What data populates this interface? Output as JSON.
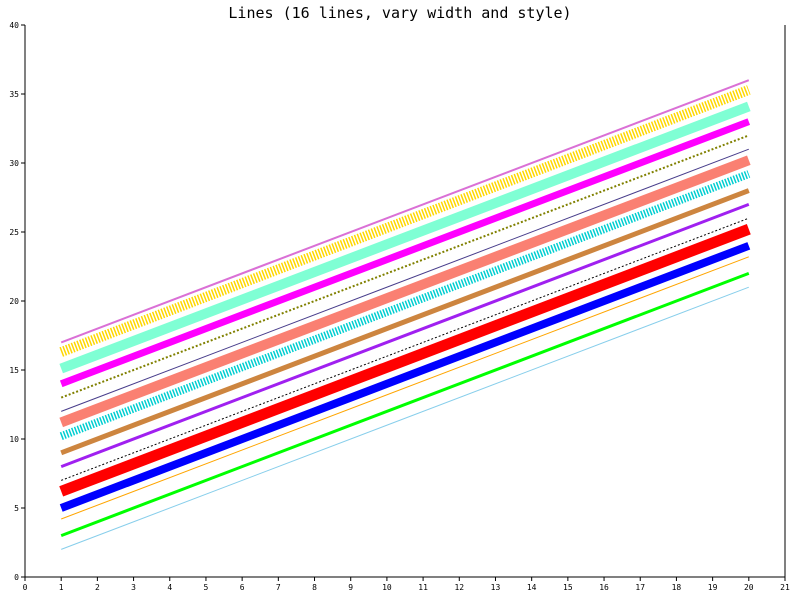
{
  "chart_data": {
    "type": "line",
    "title": "Lines (16 lines, vary width and style)",
    "xlabel": "",
    "ylabel": "",
    "xlim": [
      0,
      21
    ],
    "ylim": [
      0,
      40
    ],
    "x_ticks": [
      0,
      1,
      2,
      3,
      4,
      5,
      6,
      7,
      8,
      9,
      10,
      11,
      12,
      13,
      14,
      15,
      16,
      17,
      18,
      19,
      20,
      21
    ],
    "y_ticks": [
      0,
      5,
      10,
      15,
      20,
      25,
      30,
      35,
      40
    ],
    "grid": false,
    "legend": "none",
    "series": [
      {
        "color": "#87ceeb",
        "width": 1,
        "style": "solid",
        "x": [
          1,
          20
        ],
        "y": [
          2,
          21
        ]
      },
      {
        "color": "#00ff00",
        "width": 3,
        "style": "solid",
        "x": [
          1,
          20
        ],
        "y": [
          3,
          22
        ]
      },
      {
        "color": "#ffa500",
        "width": 1,
        "style": "solid",
        "x": [
          1,
          20
        ],
        "y": [
          4.2,
          23.2
        ]
      },
      {
        "color": "#0000ff",
        "width": 8,
        "style": "solid",
        "x": [
          1,
          20
        ],
        "y": [
          5,
          24
        ]
      },
      {
        "color": "#ff0000",
        "width": 11,
        "style": "solid",
        "x": [
          1,
          20
        ],
        "y": [
          6.2,
          25.2
        ]
      },
      {
        "color": "#000000",
        "width": 1,
        "style": "dotted",
        "x": [
          1,
          20
        ],
        "y": [
          7,
          26
        ]
      },
      {
        "color": "#a020f0",
        "width": 3,
        "style": "solid",
        "x": [
          1,
          20
        ],
        "y": [
          8,
          27
        ]
      },
      {
        "color": "#cd853f",
        "width": 5,
        "style": "solid",
        "x": [
          1,
          20
        ],
        "y": [
          9,
          28
        ]
      },
      {
        "color": "#00ced1",
        "width": 8,
        "style": "dotted",
        "x": [
          1,
          20
        ],
        "y": [
          10.2,
          29.2
        ]
      },
      {
        "color": "#fa8072",
        "width": 10,
        "style": "solid",
        "x": [
          1,
          20
        ],
        "y": [
          11.2,
          30.2
        ]
      },
      {
        "color": "#483d8b",
        "width": 1,
        "style": "solid",
        "x": [
          1,
          20
        ],
        "y": [
          12,
          31
        ]
      },
      {
        "color": "#808000",
        "width": 2,
        "style": "dotted",
        "x": [
          1,
          20
        ],
        "y": [
          13,
          32
        ]
      },
      {
        "color": "#ff00ff",
        "width": 7,
        "style": "solid",
        "x": [
          1,
          20
        ],
        "y": [
          14,
          33
        ]
      },
      {
        "color": "#7fffd4",
        "width": 10,
        "style": "solid",
        "x": [
          1,
          20
        ],
        "y": [
          15.1,
          34.1
        ]
      },
      {
        "color": "#ffd700",
        "width": 10,
        "style": "dotted",
        "x": [
          1,
          20
        ],
        "y": [
          16.3,
          35.3
        ]
      },
      {
        "color": "#da70d6",
        "width": 2,
        "style": "solid",
        "x": [
          1,
          20
        ],
        "y": [
          17,
          36
        ]
      }
    ]
  }
}
